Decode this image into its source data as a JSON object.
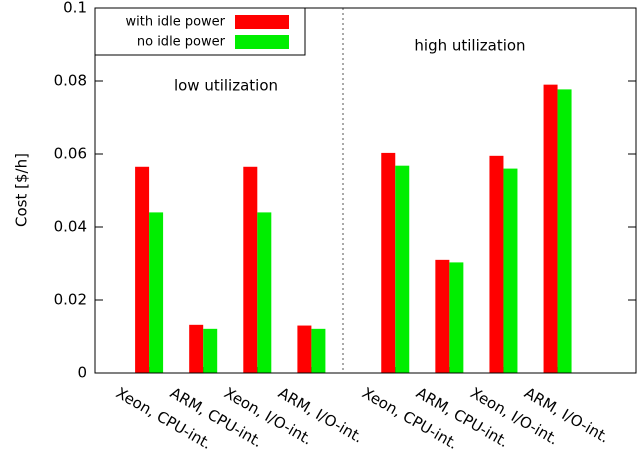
{
  "chart_data": {
    "type": "bar",
    "y_label": "Cost [$/h]",
    "categories": [
      "Xeon, CPU-int.",
      "ARM, CPU-int.",
      "Xeon, I/O-int.",
      "ARM, I/O-int.",
      "Xeon, CPU-int.",
      "ARM, CPU-int.",
      "Xeon, I/O-int.",
      "ARM, I/O-int."
    ],
    "series": [
      {
        "name": "with idle power",
        "color": "#ff0000",
        "values": [
          0.0565,
          0.0132,
          0.0565,
          0.013,
          0.0603,
          0.031,
          0.0595,
          0.079
        ]
      },
      {
        "name": "no idle power",
        "color": "#00ee00",
        "values": [
          0.044,
          0.0121,
          0.044,
          0.0121,
          0.0568,
          0.0303,
          0.056,
          0.0777
        ]
      }
    ],
    "annotations": [
      "low utilization",
      "high utilization"
    ],
    "ylim": [
      0,
      0.1
    ],
    "yticks": [
      0,
      0.02,
      0.04,
      0.06,
      0.08,
      0.1
    ],
    "legend": "top-left"
  }
}
